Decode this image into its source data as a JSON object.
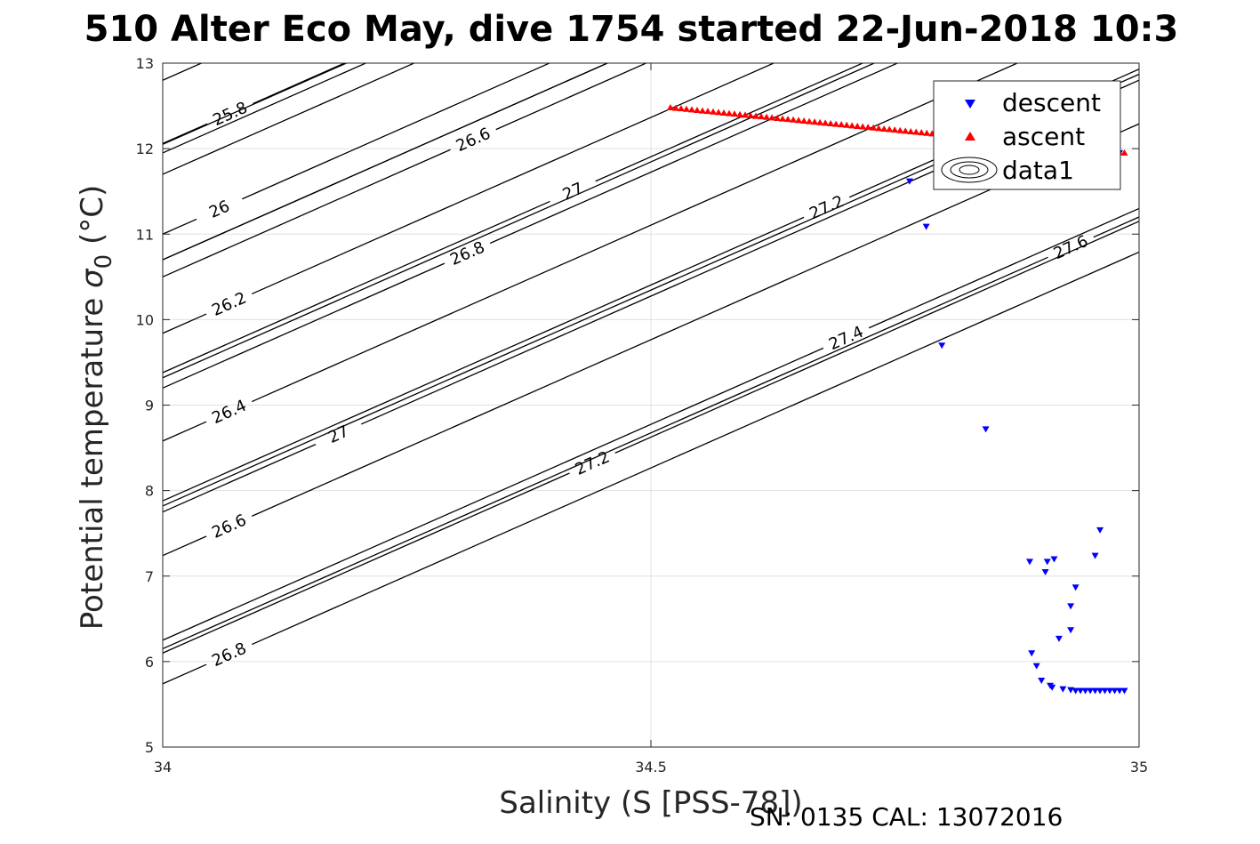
{
  "title": "510 Alter Eco May, dive 1754 started 22-Jun-2018 10:3",
  "footer": "SN: 0135  CAL: 13072016",
  "chart_data": {
    "type": "scatter",
    "title": "510 Alter Eco May, dive 1754 started 22-Jun-2018 10:3",
    "xlabel": "Salinity (S [PSS-78])",
    "ylabel_main": "Potential temperature ",
    "ylabel_sym": "σ",
    "ylabel_sub": "0",
    "ylabel_unit": " (°C)",
    "xlim": [
      34,
      35
    ],
    "ylim": [
      5,
      13
    ],
    "xticks": [
      "34",
      "34.5",
      "35"
    ],
    "yticks": [
      "5",
      "6",
      "7",
      "8",
      "9",
      "10",
      "11",
      "12",
      "13"
    ],
    "grid": true,
    "legend_position": "top-right",
    "legend": [
      "descent",
      "ascent",
      "data1"
    ],
    "series": [
      {
        "name": "descent",
        "marker": "triangle-down",
        "color": "#0000ff",
        "x": [
          34.98,
          34.765,
          34.782,
          34.798,
          34.843,
          34.96,
          34.955,
          34.913,
          34.888,
          34.904,
          34.906,
          34.935,
          34.93,
          34.93,
          34.918,
          34.89,
          34.895,
          34.9,
          34.909,
          34.911,
          34.922,
          34.93,
          34.935,
          34.94,
          34.945,
          34.95,
          34.955,
          34.96,
          34.965,
          34.97,
          34.975,
          34.98,
          34.985
        ],
        "y": [
          11.95,
          11.62,
          11.09,
          9.7,
          8.72,
          7.54,
          7.24,
          7.2,
          7.17,
          7.05,
          7.17,
          6.87,
          6.65,
          6.37,
          6.27,
          6.1,
          5.95,
          5.78,
          5.72,
          5.7,
          5.68,
          5.67,
          5.66,
          5.66,
          5.66,
          5.66,
          5.66,
          5.66,
          5.66,
          5.66,
          5.66,
          5.66,
          5.66
        ]
      },
      {
        "name": "ascent",
        "marker": "triangle-up",
        "color": "#ff0000",
        "x_start": 34.52,
        "x_end": 34.985,
        "y_start": 12.48,
        "y_end": 11.95,
        "count": 86
      }
    ],
    "contours": [
      {
        "label": "25.8",
        "y_at_34": 12.06,
        "label_x": 34.069
      },
      {
        "label": "26",
        "y_at_34": 11.0,
        "label_x": 34.058
      },
      {
        "label": "26.2",
        "y_at_34": 9.84,
        "label_x": 34.068
      },
      {
        "label": "26.4",
        "y_at_34": 8.58,
        "label_x": 34.068
      },
      {
        "label": "26.6",
        "y_at_34": 7.24,
        "label_x": 34.068
      },
      {
        "label": "26.8",
        "y_at_34": 5.74,
        "label_x": 34.068
      },
      {
        "label": "26",
        "y_at_34": 13.5,
        "label_x": 34.315
      },
      {
        "label": "26.2",
        "y_at_34": 12.8,
        "label_x": 34.325
      },
      {
        "label": "26.4",
        "y_at_34": 11.7,
        "label_x": 34.318
      },
      {
        "label": "26.6",
        "y_at_34": 10.5,
        "label_x": 34.318
      },
      {
        "label": "26.8",
        "y_at_34": 9.2,
        "label_x": 34.312
      },
      {
        "label": "27",
        "y_at_34": 7.75,
        "label_x": 34.18
      },
      {
        "label": "27.2",
        "y_at_34": 6.1,
        "label_x": 34.44
      },
      {
        "label": "26.2",
        "y_at_34": 14.3,
        "label_x": 34.56
      },
      {
        "label": "26.4",
        "y_at_34": 13.1,
        "label_x": 34.58
      },
      {
        "label": "26.6",
        "y_at_34": 11.95,
        "label_x": 34.565
      },
      {
        "label": "26.8",
        "y_at_34": 10.7,
        "label_x": 34.57
      },
      {
        "label": "27",
        "y_at_34": 9.38,
        "label_x": 34.42
      },
      {
        "label": "27.2",
        "y_at_34": 7.88,
        "label_x": 34.68
      },
      {
        "label": "27.4",
        "y_at_34": 6.25,
        "label_x": 34.7
      },
      {
        "label": "26.6",
        "y_at_34": 13.3,
        "label_x": 34.84
      },
      {
        "label": "26.8",
        "y_at_34": 12.05,
        "label_x": 34.8
      },
      {
        "label": "27",
        "y_at_34": 10.7,
        "label_x": 34.91
      },
      {
        "label": "27.2",
        "y_at_34": 9.32,
        "label_x": 34.92
      },
      {
        "label": "27.4",
        "y_at_34": 7.82,
        "label_x": 34.93
      },
      {
        "label": "27.6",
        "y_at_34": 6.15,
        "label_x": 34.93
      }
    ]
  }
}
